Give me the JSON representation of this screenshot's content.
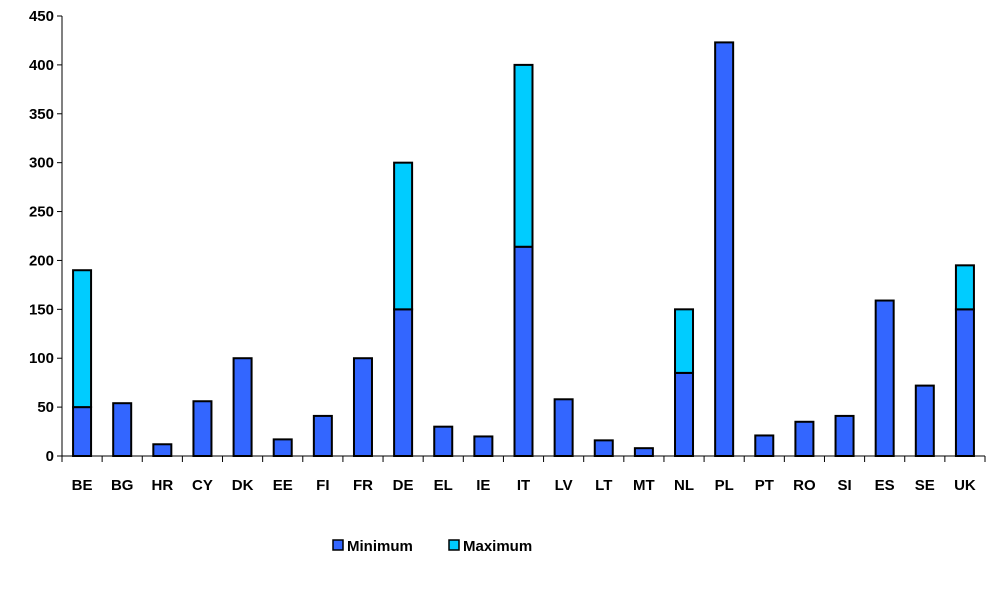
{
  "chart_data": {
    "type": "bar",
    "stacked": true,
    "categories": [
      "BE",
      "BG",
      "HR",
      "CY",
      "DK",
      "EE",
      "FI",
      "FR",
      "DE",
      "EL",
      "IE",
      "IT",
      "LV",
      "LT",
      "MT",
      "NL",
      "PL",
      "PT",
      "RO",
      "SI",
      "ES",
      "SE",
      "UK"
    ],
    "series": [
      {
        "name": "Minimum",
        "color": "#3366ff",
        "values": [
          50,
          54,
          12,
          56,
          100,
          17,
          41,
          100,
          150,
          30,
          20,
          214,
          58,
          16,
          8,
          85,
          423,
          21,
          35,
          41,
          159,
          72,
          150
        ]
      },
      {
        "name": "Maximum",
        "color": "#00ccff",
        "values": [
          140,
          0,
          0,
          0,
          0,
          0,
          0,
          0,
          150,
          0,
          0,
          186,
          0,
          0,
          0,
          65,
          0,
          0,
          0,
          0,
          0,
          0,
          45
        ]
      }
    ],
    "y_ticks": [
      "0",
      "50",
      "100",
      "150",
      "200",
      "250",
      "300",
      "350",
      "400",
      "450"
    ],
    "ylim": [
      0,
      450
    ],
    "grid": false,
    "legend_position": "bottom",
    "title": "",
    "xlabel": "",
    "ylabel": ""
  }
}
